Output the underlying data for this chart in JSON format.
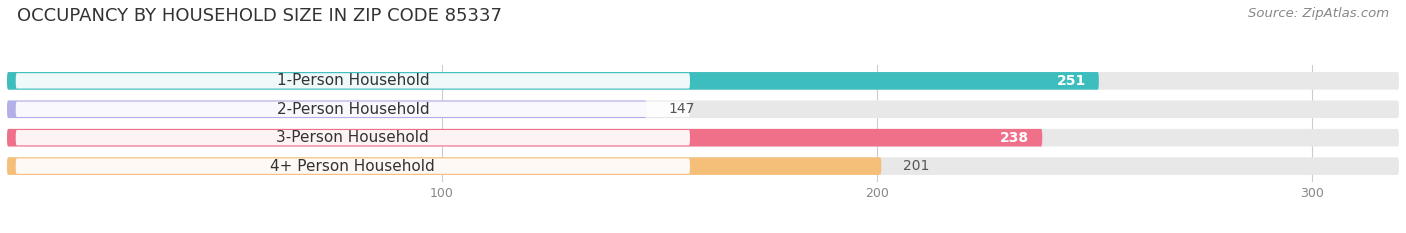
{
  "title": "OCCUPANCY BY HOUSEHOLD SIZE IN ZIP CODE 85337",
  "source": "Source: ZipAtlas.com",
  "categories": [
    "1-Person Household",
    "2-Person Household",
    "3-Person Household",
    "4+ Person Household"
  ],
  "values": [
    251,
    147,
    238,
    201
  ],
  "bar_colors": [
    "#3dbdbd",
    "#b3b0e8",
    "#f0708a",
    "#f5bf7a"
  ],
  "bg_color": "#e8e8e8",
  "xlim_max": 320,
  "xticks": [
    100,
    200,
    300
  ],
  "title_fontsize": 13,
  "source_fontsize": 9.5,
  "label_fontsize": 11,
  "value_fontsize": 10,
  "bar_height": 0.62,
  "figsize": [
    14.06,
    2.33
  ],
  "dpi": 100
}
